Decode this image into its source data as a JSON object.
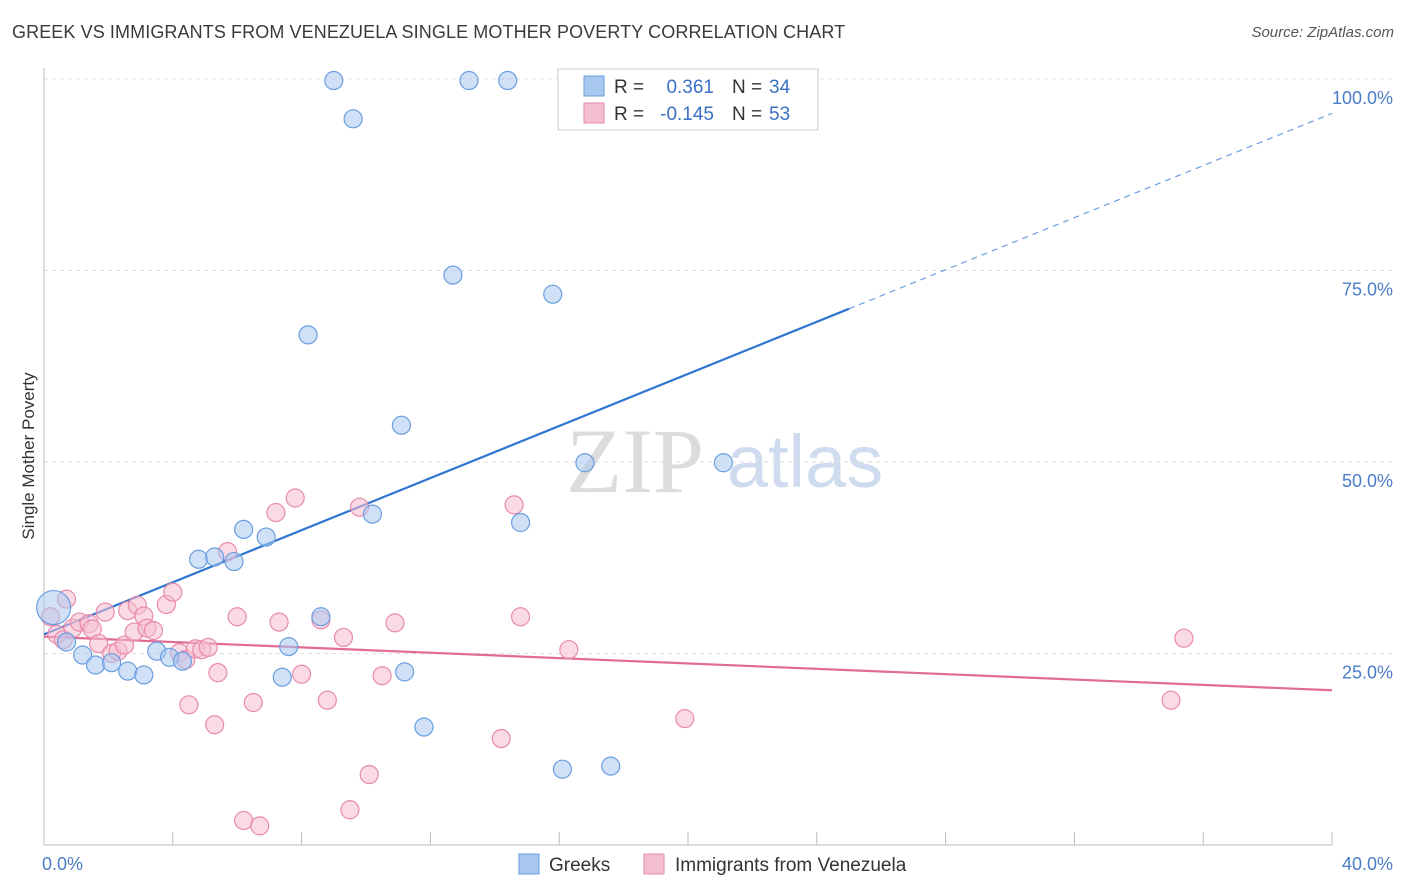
{
  "chart_data": {
    "type": "scatter",
    "title": "GREEK VS IMMIGRANTS FROM VENEZUELA SINGLE MOTHER POVERTY CORRELATION CHART",
    "source": "Source: ZipAtlas.com",
    "xlabel": "",
    "ylabel": "Single Mother Poverty",
    "xlim": [
      0,
      40
    ],
    "ylim": [
      0,
      100
    ],
    "x_tick_labels": [
      "0.0%",
      "40.0%"
    ],
    "y_ticks": [
      25,
      50,
      75,
      100
    ],
    "y_tick_labels": [
      "25.0%",
      "50.0%",
      "75.0%",
      "100.0%"
    ],
    "watermark_zip": "ZIP",
    "watermark_atlas": "atlas",
    "stats_legend": [
      {
        "r_label": "R =",
        "r_value": "0.361",
        "n_label": "N =",
        "n_value": "34"
      },
      {
        "r_label": "R =",
        "r_value": "-0.145",
        "n_label": "N =",
        "n_value": "53"
      }
    ],
    "series": [
      {
        "name": "Greeks",
        "color": "#a9c8f0",
        "stroke": "#6a9ee0",
        "line_color": "#2f75d1",
        "trend": {
          "x0": 0,
          "y0": 27.5,
          "x1": 25,
          "y1": 70.0,
          "dash_to_x": 40,
          "dash_to_y": 95.5
        },
        "points": [
          [
            0.3,
            31.0
          ],
          [
            0.7,
            26.5
          ],
          [
            1.2,
            24.8
          ],
          [
            1.6,
            23.5
          ],
          [
            2.1,
            23.8
          ],
          [
            2.6,
            22.7
          ],
          [
            3.1,
            22.2
          ],
          [
            3.5,
            25.3
          ],
          [
            3.9,
            24.5
          ],
          [
            4.3,
            24.0
          ],
          [
            4.8,
            37.3
          ],
          [
            5.3,
            37.6
          ],
          [
            5.9,
            37.0
          ],
          [
            6.2,
            41.2
          ],
          [
            6.9,
            40.2
          ],
          [
            7.6,
            25.9
          ],
          [
            7.4,
            21.9
          ],
          [
            8.2,
            66.6
          ],
          [
            8.6,
            29.8
          ],
          [
            9.0,
            99.8
          ],
          [
            9.6,
            94.8
          ],
          [
            10.2,
            43.2
          ],
          [
            11.1,
            54.8
          ],
          [
            11.2,
            22.6
          ],
          [
            11.8,
            15.4
          ],
          [
            12.7,
            74.4
          ],
          [
            13.2,
            99.8
          ],
          [
            14.4,
            99.8
          ],
          [
            14.8,
            42.1
          ],
          [
            15.8,
            71.9
          ],
          [
            16.1,
            9.9
          ],
          [
            16.8,
            49.9
          ],
          [
            17.6,
            10.3
          ],
          [
            21.1,
            49.9
          ]
        ]
      },
      {
        "name": "Immigrants from Venezuela",
        "color": "#f5bdd0",
        "stroke": "#e88aab",
        "line_color": "#e06b93",
        "trend": {
          "x0": 0,
          "y0": 27.2,
          "x1": 40,
          "y1": 20.2
        },
        "points": [
          [
            0.2,
            29.8
          ],
          [
            0.4,
            27.5
          ],
          [
            0.6,
            26.8
          ],
          [
            0.7,
            32.1
          ],
          [
            0.9,
            28.3
          ],
          [
            1.1,
            29.1
          ],
          [
            1.4,
            28.9
          ],
          [
            1.5,
            28.2
          ],
          [
            1.7,
            26.3
          ],
          [
            1.9,
            30.4
          ],
          [
            2.1,
            25.0
          ],
          [
            2.3,
            25.3
          ],
          [
            2.5,
            26.1
          ],
          [
            2.6,
            30.6
          ],
          [
            2.8,
            27.8
          ],
          [
            2.9,
            31.3
          ],
          [
            3.1,
            29.9
          ],
          [
            3.2,
            28.3
          ],
          [
            3.4,
            28.0
          ],
          [
            3.8,
            31.4
          ],
          [
            4.0,
            33.0
          ],
          [
            4.2,
            25.1
          ],
          [
            4.4,
            24.2
          ],
          [
            4.5,
            18.3
          ],
          [
            4.7,
            25.6
          ],
          [
            4.9,
            25.5
          ],
          [
            5.1,
            25.8
          ],
          [
            5.3,
            15.7
          ],
          [
            5.4,
            22.5
          ],
          [
            5.7,
            38.3
          ],
          [
            6.0,
            29.8
          ],
          [
            6.2,
            3.2
          ],
          [
            6.5,
            18.6
          ],
          [
            6.7,
            2.5
          ],
          [
            7.2,
            43.4
          ],
          [
            7.3,
            29.1
          ],
          [
            7.8,
            45.3
          ],
          [
            8.0,
            22.3
          ],
          [
            8.6,
            29.4
          ],
          [
            8.8,
            18.9
          ],
          [
            9.3,
            27.1
          ],
          [
            9.5,
            4.6
          ],
          [
            9.8,
            44.1
          ],
          [
            10.1,
            9.2
          ],
          [
            10.5,
            22.1
          ],
          [
            10.9,
            29.0
          ],
          [
            14.2,
            13.9
          ],
          [
            14.6,
            44.4
          ],
          [
            14.8,
            29.8
          ],
          [
            16.3,
            25.5
          ],
          [
            19.9,
            16.5
          ],
          [
            35.0,
            18.9
          ],
          [
            35.4,
            27.0
          ]
        ]
      }
    ]
  }
}
